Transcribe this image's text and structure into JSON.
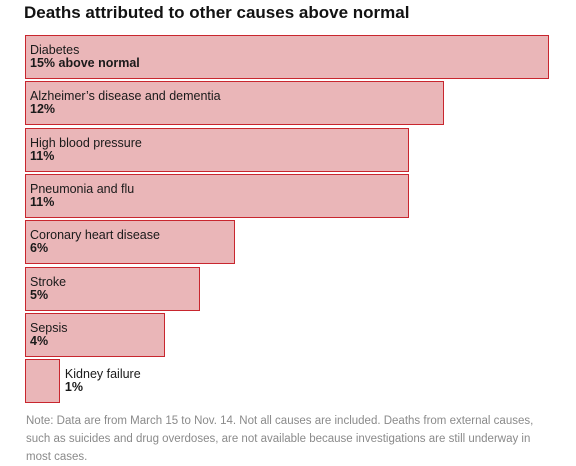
{
  "chart_data": {
    "type": "bar",
    "orientation": "horizontal",
    "title": "Deaths attributed to other causes above normal",
    "categories": [
      "Diabetes",
      "Alzheimer’s disease and dementia",
      "High blood pressure",
      "Pneumonia and flu",
      "Coronary heart disease",
      "Stroke",
      "Sepsis",
      "Kidney failure"
    ],
    "values": [
      15,
      12,
      11,
      11,
      6,
      5,
      4,
      1
    ],
    "value_labels": [
      "15% above normal",
      "12%",
      "11%",
      "11%",
      "6%",
      "5%",
      "4%",
      "1%"
    ],
    "unit": "percent above normal",
    "xlim": [
      0,
      15
    ],
    "grid": false,
    "colors": {
      "bar_fill": "#eab6b8",
      "bar_stroke": "#c8262e"
    }
  },
  "note": "Note: Data are from March 15 to Nov. 14. Not all causes are included. Deaths from external causes, such as suicides and drug overdoses, are not available because investigations are still underway in most cases."
}
